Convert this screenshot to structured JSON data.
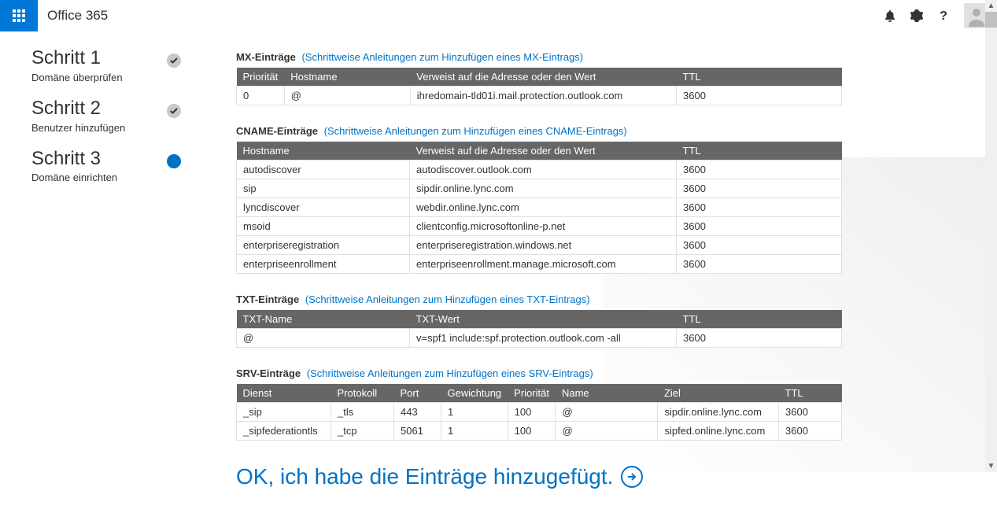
{
  "brand": "Office 365",
  "sidebar": {
    "steps": [
      {
        "title": "Schritt 1",
        "sub": "Domäne überprüfen",
        "state": "done"
      },
      {
        "title": "Schritt 2",
        "sub": "Benutzer hinzufügen",
        "state": "done"
      },
      {
        "title": "Schritt 3",
        "sub": "Domäne einrichten",
        "state": "current"
      }
    ]
  },
  "sections": {
    "mx": {
      "title": "MX-Einträge",
      "link": "(Schrittweise Anleitungen zum Hinzufügen eines MX-Eintrags)",
      "cols": [
        "Priorität",
        "Hostname",
        "Verweist auf die Adresse oder den Wert",
        "TTL"
      ],
      "rows": [
        [
          "0",
          "@",
          "ihredomain-tld01i.mail.protection.outlook.com",
          "3600"
        ]
      ]
    },
    "cname": {
      "title": "CNAME-Einträge",
      "link": "(Schrittweise Anleitungen zum Hinzufügen eines CNAME-Eintrags)",
      "cols": [
        "Hostname",
        "Verweist auf die Adresse oder den Wert",
        "TTL"
      ],
      "rows": [
        [
          "autodiscover",
          "autodiscover.outlook.com",
          "3600"
        ],
        [
          "sip",
          "sipdir.online.lync.com",
          "3600"
        ],
        [
          "lyncdiscover",
          "webdir.online.lync.com",
          "3600"
        ],
        [
          "msoid",
          "clientconfig.microsoftonline-p.net",
          "3600"
        ],
        [
          "enterpriseregistration",
          "enterpriseregistration.windows.net",
          "3600"
        ],
        [
          "enterpriseenrollment",
          "enterpriseenrollment.manage.microsoft.com",
          "3600"
        ]
      ]
    },
    "txt": {
      "title": "TXT-Einträge",
      "link": "(Schrittweise Anleitungen zum Hinzufügen eines TXT-Eintrags)",
      "cols": [
        "TXT-Name",
        "TXT-Wert",
        "TTL"
      ],
      "rows": [
        [
          "@",
          "v=spf1 include:spf.protection.outlook.com -all",
          "3600"
        ]
      ]
    },
    "srv": {
      "title": "SRV-Einträge",
      "link": "(Schrittweise Anleitungen zum Hinzufügen eines SRV-Eintrags)",
      "cols": [
        "Dienst",
        "Protokoll",
        "Port",
        "Gewichtung",
        "Priorität",
        "Name",
        "Ziel",
        "TTL"
      ],
      "rows": [
        [
          "_sip",
          "_tls",
          "443",
          "1",
          "100",
          "@",
          "sipdir.online.lync.com",
          "3600"
        ],
        [
          "_sipfederationtls",
          "_tcp",
          "5061",
          "1",
          "100",
          "@",
          "sipfed.online.lync.com",
          "3600"
        ]
      ]
    }
  },
  "cta": "OK, ich habe die Einträge hinzugefügt.",
  "colors": {
    "primary": "#0072c6",
    "header_bg": "#666666",
    "border": "#e0e0e0"
  },
  "colwidths": {
    "mx": [
      "60px",
      "160px",
      "auto",
      "210px"
    ],
    "cname": [
      "220px",
      "auto",
      "210px"
    ],
    "txt": [
      "220px",
      "auto",
      "210px"
    ],
    "srv": [
      "120px",
      "80px",
      "60px",
      "70px",
      "60px",
      "130px",
      "auto",
      "80px"
    ]
  }
}
